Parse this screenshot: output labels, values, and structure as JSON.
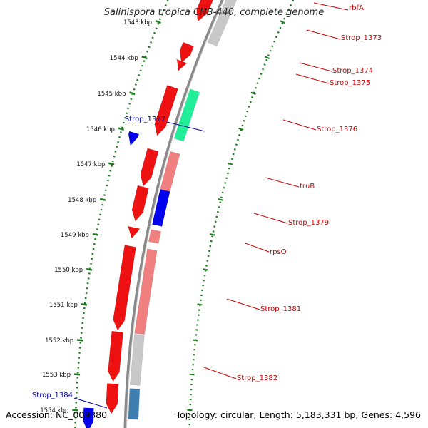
{
  "header": {
    "title": "Salinispora tropica CNB-440, complete genome"
  },
  "footer": {
    "accession": "Accession: NC_009380",
    "summary": "Topology: circular; Length: 5,183,331 bp; Genes: 4,596"
  },
  "colors": {
    "backbone": "#8a8a8a",
    "ruler": "#1a7a1a",
    "red": "#ee1111",
    "salmon": "#f08080",
    "grey": "#c8c8c8",
    "green": "#22ee99",
    "blue": "#0000ee",
    "steel": "#3f7fb0",
    "label_red": "#cc0000",
    "label_blue": "#0000aa"
  },
  "ruler": {
    "ticks": [
      "1543 kbp",
      "1544 kbp",
      "1545 kbp",
      "1546 kbp",
      "1547 kbp",
      "1548 kbp",
      "1549 kbp",
      "1550 kbp",
      "1551 kbp",
      "1552 kbp",
      "1553 kbp",
      "1554 kbp"
    ]
  },
  "genes": [
    {
      "name": "rbfA",
      "color": "red",
      "strand": "reverse"
    },
    {
      "name": "Strop_1373",
      "color": "grey",
      "strand": "forward"
    },
    {
      "name": "Strop_1374",
      "color": "red",
      "strand": "reverse"
    },
    {
      "name": "Strop_1375",
      "color": "red",
      "strand": "reverse"
    },
    {
      "name": "Strop_1376",
      "color": "green",
      "strand": "forward"
    },
    {
      "name": "Strop_1377",
      "color": "blue",
      "strand": "reverse"
    },
    {
      "name": "truB",
      "color": "salmon",
      "strand": "forward"
    },
    {
      "name": "Strop_1379",
      "color": "blue",
      "strand": "forward"
    },
    {
      "name": "rpsO",
      "color": "salmon",
      "strand": "forward"
    },
    {
      "name": "Strop_1381",
      "color": "salmon",
      "strand": "forward"
    },
    {
      "name": "Strop_1382",
      "color": "grey",
      "strand": "forward"
    },
    {
      "name": "Strop_1384",
      "color": "blue",
      "strand": "reverse"
    }
  ]
}
